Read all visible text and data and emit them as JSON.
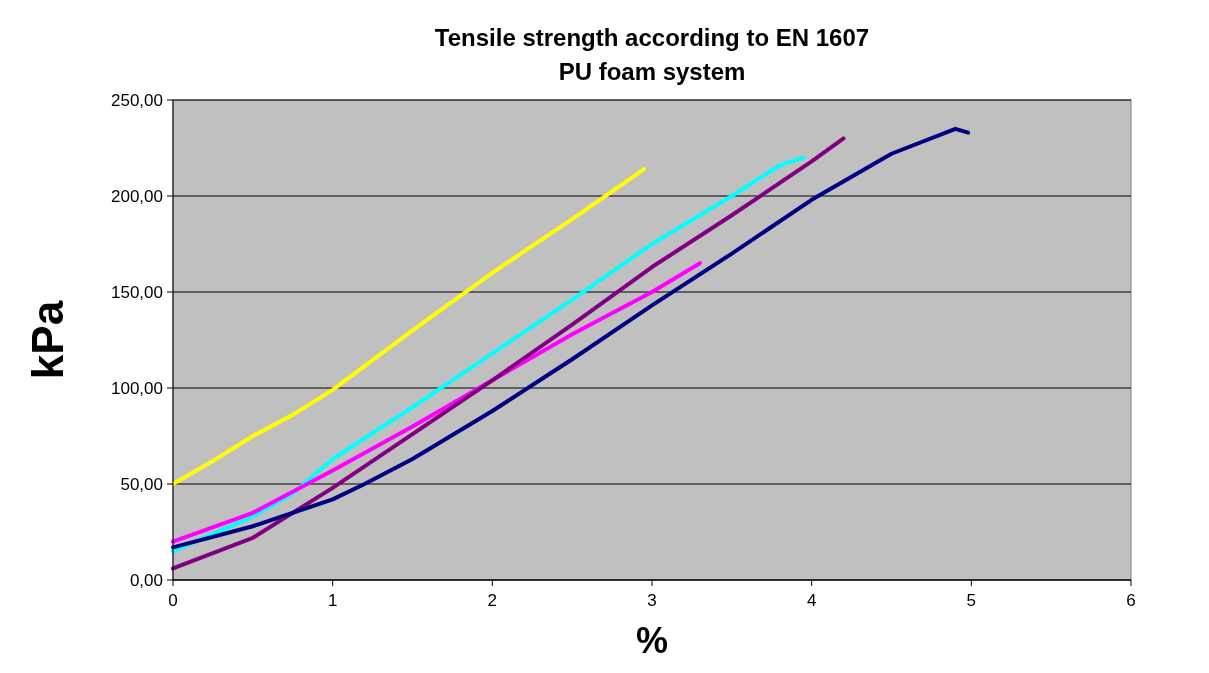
{
  "chart_data": {
    "type": "line",
    "title": "Tensile strength according to EN 1607",
    "subtitle": "PU foam system",
    "xlabel": "%",
    "ylabel": "kPa",
    "xlim": [
      0,
      6
    ],
    "xticks": [
      0,
      1,
      2,
      3,
      4,
      5,
      6
    ],
    "ylim": [
      0,
      250
    ],
    "yticks": [
      {
        "value": 0,
        "label": "0,00"
      },
      {
        "value": 50,
        "label": "50,00"
      },
      {
        "value": 100,
        "label": "100,00"
      },
      {
        "value": 150,
        "label": "150,00"
      },
      {
        "value": 200,
        "label": "200,00"
      },
      {
        "value": 250,
        "label": "250,00"
      }
    ],
    "grid": "y",
    "marker": "none",
    "line_style": "solid",
    "series": [
      {
        "color": "#ffff00",
        "x": [
          0,
          0.25,
          0.5,
          0.75,
          1,
          1.5,
          2,
          2.5,
          2.95
        ],
        "values": [
          50,
          62,
          75,
          86,
          99,
          130,
          160,
          188,
          214
        ]
      },
      {
        "color": "#00ffff",
        "x": [
          0,
          0.5,
          0.75,
          1,
          1.5,
          2,
          2.5,
          3,
          3.5,
          3.8,
          3.95
        ],
        "values": [
          15,
          33,
          45,
          63,
          90,
          118,
          146,
          175,
          200,
          216,
          220
        ]
      },
      {
        "color": "#ff00ff",
        "x": [
          0,
          0.5,
          1,
          1.5,
          2,
          2.5,
          3,
          3.3
        ],
        "values": [
          20,
          35,
          57,
          80,
          104,
          128,
          150,
          165
        ]
      },
      {
        "color": "#800080",
        "x": [
          0,
          0.5,
          1,
          1.5,
          2,
          2.5,
          3,
          3.5,
          4,
          4.2
        ],
        "values": [
          6,
          22,
          48,
          76,
          104,
          133,
          163,
          190,
          218,
          230
        ]
      },
      {
        "color": "#000080",
        "x": [
          0,
          0.5,
          1,
          1.2,
          1.5,
          2,
          2.5,
          3,
          3.5,
          4,
          4.5,
          4.9,
          4.98
        ],
        "values": [
          17,
          28,
          42,
          50,
          63,
          88,
          115,
          143,
          170,
          198,
          222,
          235,
          233
        ]
      }
    ]
  }
}
